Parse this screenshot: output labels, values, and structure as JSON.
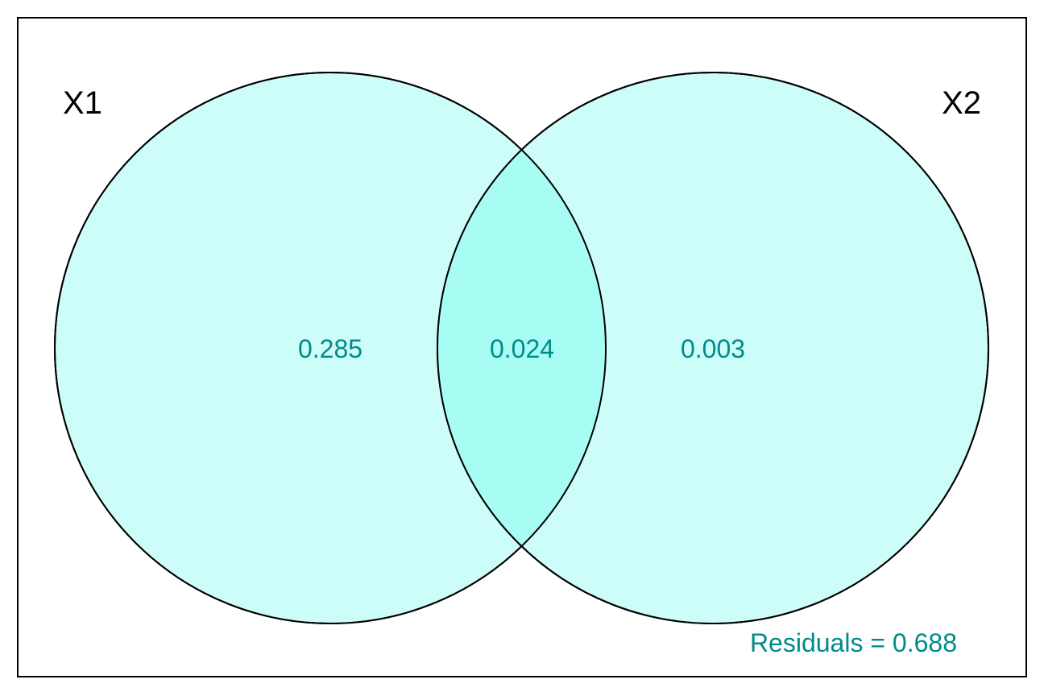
{
  "diagram": {
    "type": "venn",
    "sets": [
      {
        "label": "X1"
      },
      {
        "label": "X2"
      }
    ],
    "regions": {
      "x1_only": "0.285",
      "overlap": "0.024",
      "x2_only": "0.003"
    },
    "residuals": "Residuals = 0.688",
    "colors": {
      "fill": "#ccfdf8",
      "overlap_fill": "#a7fcf4",
      "value_text": "#008b8b",
      "stroke": "#000000"
    }
  }
}
